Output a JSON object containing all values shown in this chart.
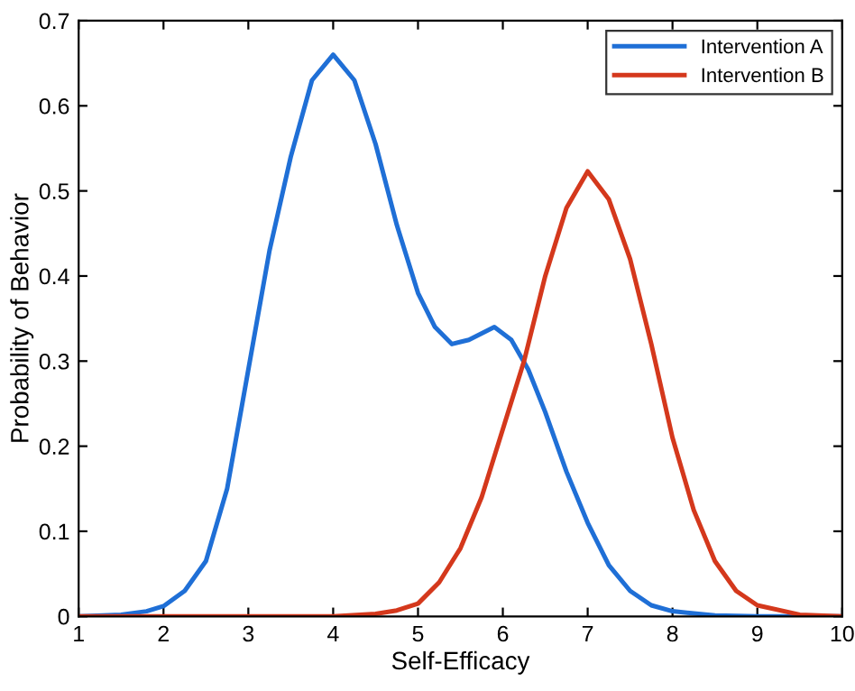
{
  "chart_data": {
    "type": "line",
    "xlabel": "Self-Efficacy",
    "ylabel": "Probability of Behavior",
    "xlim": [
      1,
      10
    ],
    "xticks": [
      1,
      2,
      3,
      4,
      5,
      6,
      7,
      8,
      9,
      10
    ],
    "ylim": [
      0,
      0.7
    ],
    "yticks": [
      0,
      0.1,
      0.2,
      0.3,
      0.4,
      0.5,
      0.6,
      0.7
    ],
    "grid": false,
    "legend": "top right",
    "marker": "none",
    "line_style": "solid",
    "series": [
      {
        "name": "Intervention A",
        "color": "#1f6fd6",
        "x": [
          1,
          1.5,
          1.8,
          2,
          2.25,
          2.5,
          2.75,
          3,
          3.25,
          3.5,
          3.75,
          4,
          4.25,
          4.5,
          4.75,
          5,
          5.2,
          5.4,
          5.6,
          5.9,
          6.1,
          6.3,
          6.5,
          6.75,
          7,
          7.25,
          7.5,
          7.75,
          8,
          8.5,
          9,
          10
        ],
        "values": [
          0,
          0.002,
          0.006,
          0.012,
          0.03,
          0.065,
          0.15,
          0.29,
          0.43,
          0.54,
          0.63,
          0.66,
          0.63,
          0.555,
          0.46,
          0.38,
          0.34,
          0.32,
          0.325,
          0.34,
          0.325,
          0.29,
          0.24,
          0.17,
          0.11,
          0.06,
          0.03,
          0.013,
          0.006,
          0.001,
          0,
          0
        ]
      },
      {
        "name": "Intervention B",
        "color": "#d4381c",
        "x": [
          1,
          4,
          4.5,
          4.75,
          5,
          5.25,
          5.5,
          5.75,
          6,
          6.25,
          6.5,
          6.75,
          7,
          7.25,
          7.5,
          7.75,
          8,
          8.25,
          8.5,
          8.75,
          9,
          9.5,
          10
        ],
        "values": [
          0,
          0,
          0.003,
          0.007,
          0.015,
          0.04,
          0.08,
          0.14,
          0.22,
          0.3,
          0.4,
          0.48,
          0.523,
          0.49,
          0.42,
          0.32,
          0.21,
          0.125,
          0.065,
          0.03,
          0.013,
          0.002,
          0
        ]
      }
    ]
  }
}
